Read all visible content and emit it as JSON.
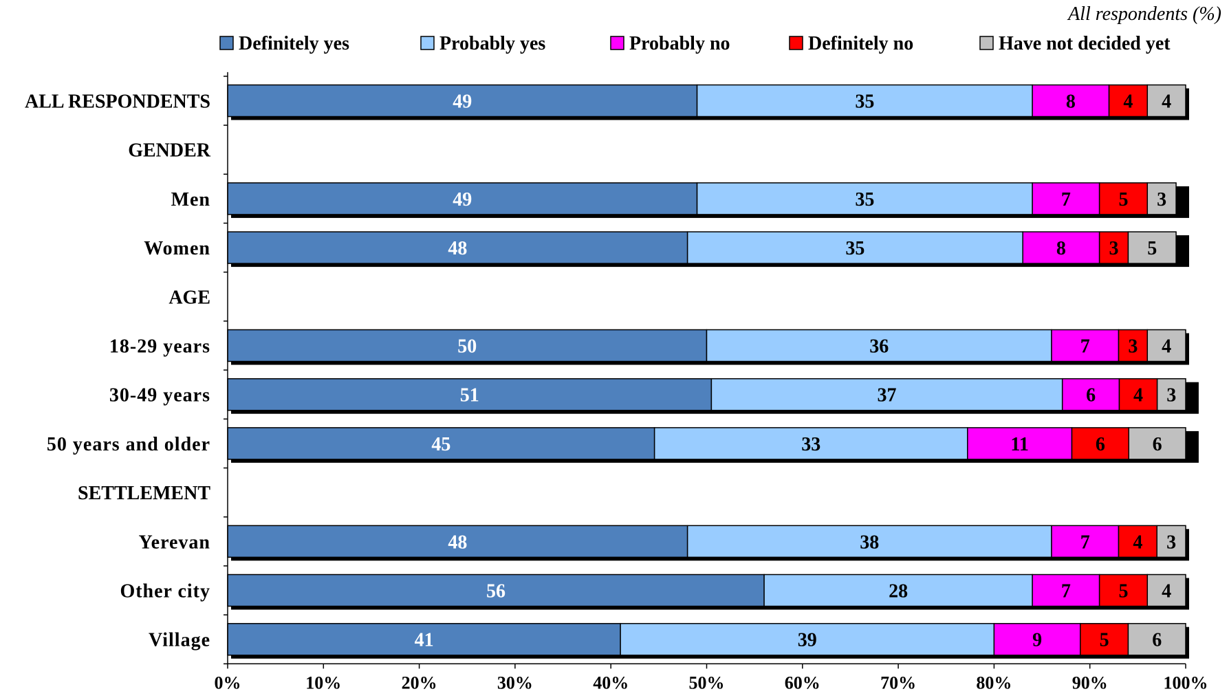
{
  "chart_data": {
    "type": "bar",
    "orientation": "horizontal",
    "stacked": true,
    "subtitle": "All respondents (%)",
    "legend_position": "top",
    "xlim": [
      0,
      100
    ],
    "x_ticks": [
      "0%",
      "10%",
      "20%",
      "30%",
      "40%",
      "50%",
      "60%",
      "70%",
      "80%",
      "90%",
      "100%"
    ],
    "grid": false,
    "categories": [
      "ALL RESPONDENTS",
      "GENDER",
      "Men",
      "Women",
      "AGE",
      "18-29 years",
      "30-49 years",
      "50 years and older",
      "SETTLEMENT",
      "Yerevan",
      "Other city",
      "Village"
    ],
    "series": [
      {
        "name": "Definitely yes",
        "color": "#4f81bd",
        "label_color": "#ffffff",
        "values": [
          49,
          null,
          49,
          48,
          null,
          50,
          51,
          45,
          null,
          48,
          56,
          41
        ]
      },
      {
        "name": "Probably yes",
        "color": "#99ccff",
        "label_color": "#000000",
        "values": [
          35,
          null,
          35,
          35,
          null,
          36,
          37,
          33,
          null,
          38,
          28,
          39
        ]
      },
      {
        "name": "Probably no",
        "color": "#ff00ff",
        "label_color": "#000000",
        "values": [
          8,
          null,
          7,
          8,
          null,
          7,
          6,
          11,
          null,
          7,
          7,
          9
        ]
      },
      {
        "name": "Definitely no",
        "color": "#ff0000",
        "label_color": "#000000",
        "values": [
          4,
          null,
          5,
          3,
          null,
          3,
          4,
          6,
          null,
          4,
          5,
          5
        ]
      },
      {
        "name": "Have not decided yet",
        "color": "#c0c0c0",
        "label_color": "#000000",
        "values": [
          4,
          null,
          3,
          5,
          null,
          4,
          3,
          6,
          null,
          3,
          4,
          6
        ]
      }
    ]
  }
}
